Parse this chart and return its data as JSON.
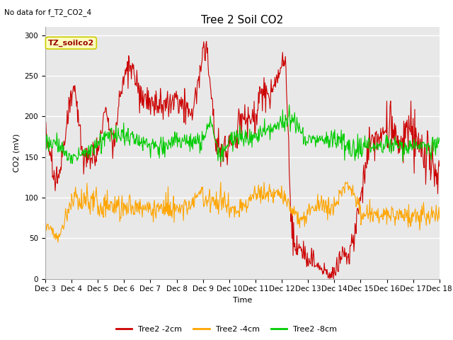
{
  "title": "Tree 2 Soil CO2",
  "no_data_text": "No data for f_T2_CO2_4",
  "ylabel": "CO2 (mV)",
  "xlabel": "Time",
  "annotation": "TZ_soilco2",
  "ylim": [
    0,
    310
  ],
  "yticks": [
    0,
    50,
    100,
    150,
    200,
    250,
    300
  ],
  "xtick_labels": [
    "Dec 3",
    "Dec 4",
    "Dec 5",
    "Dec 6",
    "Dec 7",
    "Dec 8",
    "Dec 9",
    "Dec 10",
    "Dec 11",
    "Dec 12",
    "Dec 13",
    "Dec 14",
    "Dec 15",
    "Dec 16",
    "Dec 17",
    "Dec 18"
  ],
  "line_colors": {
    "2cm": "#cc0000",
    "4cm": "#ffa500",
    "8cm": "#00cc00"
  },
  "legend_labels": [
    "Tree2 -2cm",
    "Tree2 -4cm",
    "Tree2 -8cm"
  ],
  "plot_bg_color": "#e8e8e8",
  "fig_bg_color": "#ffffff",
  "grid_color": "#ffffff",
  "title_fontsize": 11,
  "label_fontsize": 8,
  "tick_fontsize": 7.5,
  "legend_fontsize": 8
}
